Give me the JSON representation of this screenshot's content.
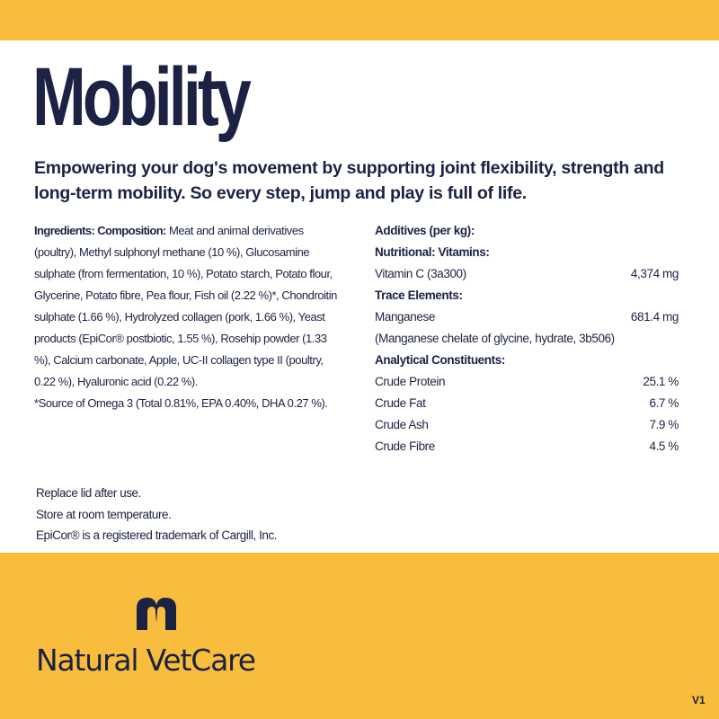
{
  "header": {
    "title": "Mobility",
    "tagline": "Empowering your dog's movement by supporting joint flexibility, strength and long-term mobility. So every step, jump and play is full of life."
  },
  "ingredients": {
    "label": "Ingredients: Composition:",
    "text": "Meat and animal derivatives (poultry), Methyl sulphonyl methane (10 %), Glucosamine sulphate (from fermentation, 10 %), Potato starch, Potato flour, Glycerine, Potato fibre, Pea flour, Fish oil (2.22 %)*, Chondroitin sulphate (1.66 %), Hydrolyzed collagen (pork, 1.66 %), Yeast products (EpiCor® postbiotic, 1.55 %), Rosehip powder (1.33 %), Calcium carbonate, Apple, UC-II collagen type II (poultry, 0.22 %), Hyaluronic acid (0.22 %).",
    "note": "*Source of Omega 3 (Total 0.81%, EPA 0.40%, DHA 0.27 %)."
  },
  "additives": {
    "heading": "Additives (per kg):",
    "sections": [
      {
        "heading": "Nutritional: Vitamins:",
        "rows": [
          [
            "Vitamin C (3a300)",
            "4,374 mg"
          ]
        ]
      },
      {
        "heading": "Trace Elements:",
        "rows": [
          [
            "Manganese",
            "681.4 mg"
          ]
        ],
        "note": "(Manganese chelate of glycine, hydrate, 3b506)"
      },
      {
        "heading": "Analytical Constituents:",
        "rows": [
          [
            "Crude Protein",
            "25.1 %"
          ],
          [
            "Crude Fat",
            "6.7 %"
          ],
          [
            "Crude Ash",
            "7.9 %"
          ],
          [
            "Crude Fibre",
            "4.5 %"
          ]
        ]
      }
    ]
  },
  "notes": [
    "Replace lid after use.",
    "Store at room temperature.",
    "EpiCor® is a registered trademark of Cargill, Inc."
  ],
  "brand": "Natural VetCare",
  "version": "V1"
}
